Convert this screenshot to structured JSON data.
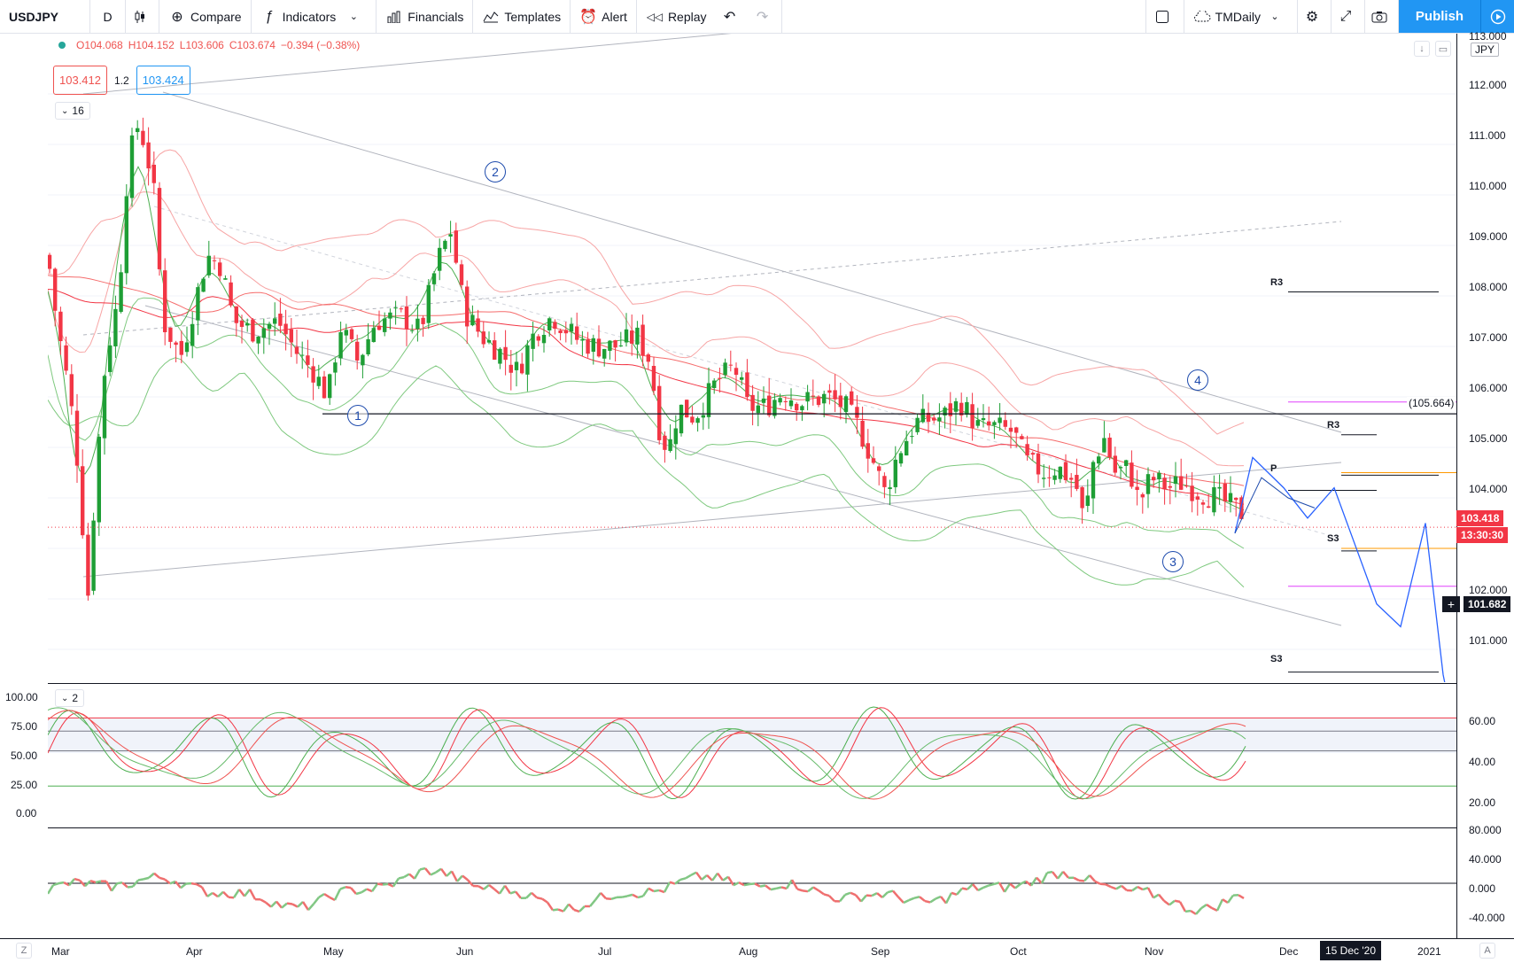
{
  "toolbar": {
    "symbol": "USDJPY",
    "interval": "D",
    "compare": "Compare",
    "indicators": "Indicators",
    "financials": "Financials",
    "templates": "Templates",
    "alert": "Alert",
    "replay": "Replay",
    "layout_name": "TMDaily",
    "publish": "Publish"
  },
  "legend": {
    "open": "O104.068",
    "high": "H104.152",
    "low": "L103.606",
    "close": "C103.674",
    "change": "−0.394 (−0.38%)",
    "sell_price": "103.412",
    "spread": "1.2",
    "buy_price": "103.424",
    "indicator_count": "16"
  },
  "price_scale": {
    "currency": "JPY",
    "labels": [
      "113.000",
      "112.000",
      "111.000",
      "110.000",
      "109.000",
      "108.000",
      "107.000",
      "106.000",
      "105.000",
      "104.000",
      "102.000",
      "101.000"
    ],
    "last_price": "103.418",
    "countdown": "13:30:30",
    "crosshair_price": "101.682"
  },
  "oscillator": {
    "count_label": "2",
    "left_labels": [
      "100.00",
      "75.00",
      "50.00",
      "25.00",
      "0.00"
    ],
    "right_labels": [
      "60.00",
      "40.00",
      "20.00"
    ]
  },
  "momentum": {
    "right_labels": [
      "80.000",
      "40.000",
      "0.000",
      "-40.000"
    ]
  },
  "time_axis": {
    "labels": [
      "Mar",
      "Apr",
      "May",
      "Jun",
      "Jul",
      "Aug",
      "Sep",
      "Oct",
      "Nov",
      "Dec",
      "2021"
    ],
    "highlighted_date": "15 Dec '20",
    "tz_btn": "Z",
    "auto_btn": "A"
  },
  "annotations": {
    "waves": [
      "1",
      "2",
      "3",
      "4"
    ],
    "pivots": {
      "r3_a": "R3",
      "r3_b": "R3",
      "s3_a": "S3",
      "s3_b": "S3",
      "p": "P"
    },
    "level": "(105.664)"
  },
  "colors": {
    "bull": "#26a69a",
    "candle_up": "#1e9e35",
    "candle_down": "#f23645",
    "accent": "#2196f3",
    "wave": "#1e4bad"
  }
}
